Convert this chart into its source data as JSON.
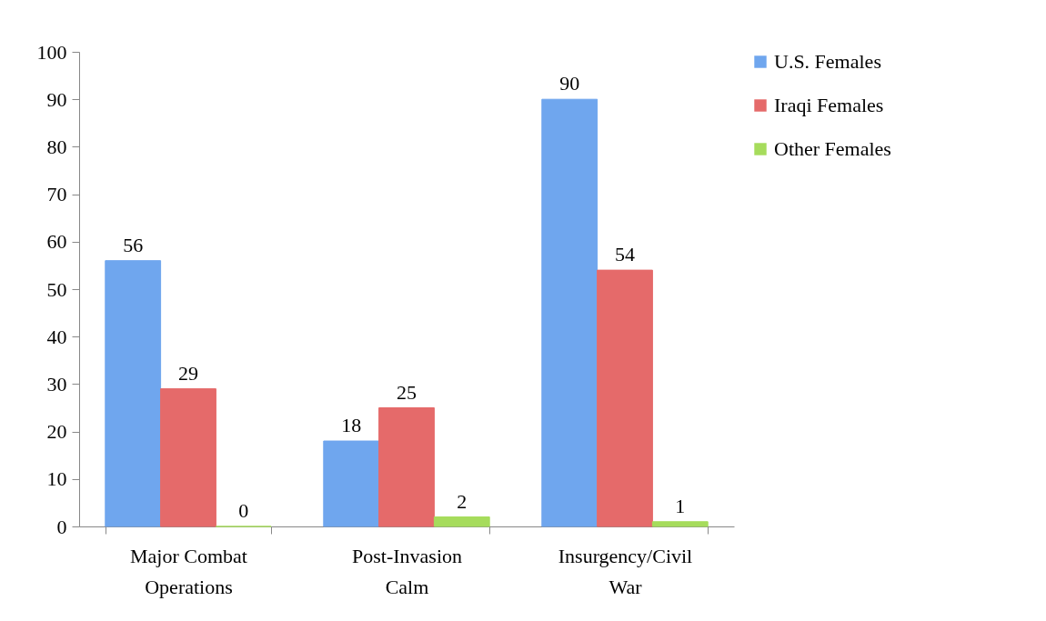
{
  "chart_data": {
    "type": "bar",
    "categories": [
      "Major Combat Operations",
      "Post-Invasion Calm",
      "Insurgency/Civil War"
    ],
    "series": [
      {
        "name": "U.S. Females",
        "color": "#6fa6ee",
        "values": [
          56,
          18,
          90
        ]
      },
      {
        "name": "Iraqi Females",
        "color": "#e56a6a",
        "values": [
          29,
          25,
          54
        ]
      },
      {
        "name": "Other Females",
        "color": "#a6dc5c",
        "values": [
          0,
          2,
          1
        ]
      }
    ],
    "ylim": [
      0,
      100
    ],
    "yticks": [
      0,
      10,
      20,
      30,
      40,
      50,
      60,
      70,
      80,
      90,
      100
    ],
    "grid": false,
    "legend": "right",
    "data_labels": true
  }
}
